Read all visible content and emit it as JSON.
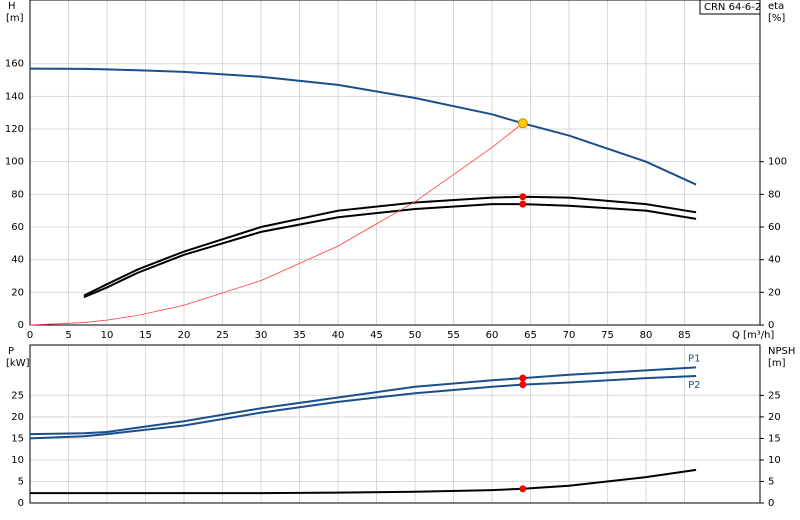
{
  "chart_data": [
    {
      "type": "line",
      "title": "CRN 64-6-2",
      "ylabel": "H",
      "yunit": "[m]",
      "y2label": "eta",
      "y2unit": "[%]",
      "xlabel": "Q [m³/h]",
      "x": [
        0,
        7,
        10,
        14,
        20,
        30,
        40,
        50,
        60,
        64,
        70,
        80,
        86.5
      ],
      "xlim": [
        0,
        94.8
      ],
      "xticks": [
        0,
        5,
        10,
        15,
        20,
        25,
        30,
        35,
        40,
        45,
        50,
        55,
        60,
        65,
        70,
        75,
        80,
        85
      ],
      "ylim": [
        0,
        199
      ],
      "yticks": [
        0,
        20,
        40,
        60,
        80,
        100,
        120,
        140,
        160
      ],
      "y2lim": [
        0,
        199
      ],
      "y2ticks": [
        0,
        20,
        40,
        60,
        80,
        100
      ],
      "grid": true,
      "xtick_labels": true,
      "series": [
        {
          "color": "#1a4f8c",
          "values": [
            157,
            156.8,
            156.5,
            156,
            155,
            152,
            147,
            139,
            129,
            123.5,
            116,
            100,
            86
          ]
        },
        {
          "color": "#000000",
          "axis": "y2",
          "values": [
            null,
            18,
            25,
            34,
            45,
            60,
            70,
            75,
            78,
            78.5,
            78,
            74,
            69
          ]
        },
        {
          "color": "#000000",
          "axis": "y2",
          "values": [
            null,
            17,
            23,
            32,
            43,
            57,
            66,
            71,
            74,
            74,
            73,
            70,
            65
          ]
        },
        {
          "color": "#ff3a3a",
          "values": [
            0,
            1.5,
            3,
            5.9,
            12.1,
            27.2,
            48.3,
            75.5,
            108.7,
            123.5,
            null,
            null,
            null
          ]
        }
      ],
      "markers": [
        {
          "x": 64,
          "y": 123.5,
          "color": "#f5d000"
        },
        {
          "x": 64,
          "y": 78.5,
          "color": "#ff0000",
          "axis": "y2"
        },
        {
          "x": 64,
          "y": 74,
          "color": "#ff0000",
          "axis": "y2"
        }
      ]
    },
    {
      "type": "line",
      "ylabel": "P",
      "yunit": "[kW]",
      "y2label": "NPSH",
      "y2unit": "[m]",
      "x": [
        0,
        7,
        10,
        14,
        20,
        30,
        40,
        50,
        60,
        64,
        70,
        80,
        86.5
      ],
      "xlim": [
        0,
        94.8
      ],
      "xticks": [
        0,
        5,
        10,
        15,
        20,
        25,
        30,
        35,
        40,
        45,
        50,
        55,
        60,
        65,
        70,
        75,
        80,
        85
      ],
      "ylim": [
        0,
        36.7
      ],
      "yticks": [
        0,
        5,
        10,
        15,
        20,
        25
      ],
      "y2lim": [
        0,
        36.7
      ],
      "y2ticks": [
        0,
        5,
        10,
        15,
        20,
        25
      ],
      "grid": true,
      "xtick_labels": false,
      "series": [
        {
          "name": "P1",
          "color": "#1a4f8c",
          "values": [
            16,
            16.2,
            16.5,
            17.5,
            19,
            22,
            24.5,
            27,
            28.5,
            29,
            29.8,
            30.8,
            31.5
          ]
        },
        {
          "name": "P2",
          "color": "#1a4f8c",
          "values": [
            15,
            15.5,
            16,
            16.8,
            18,
            21,
            23.5,
            25.5,
            27,
            27.5,
            28,
            29,
            29.5
          ]
        },
        {
          "color": "#000000",
          "axis": "y2",
          "values": [
            2.3,
            2.3,
            2.3,
            2.3,
            2.3,
            2.3,
            2.4,
            2.6,
            3,
            3.3,
            4,
            6,
            7.7
          ]
        }
      ],
      "markers": [
        {
          "x": 64,
          "y": 29,
          "color": "#ff0000"
        },
        {
          "x": 64,
          "y": 27.5,
          "color": "#ff0000"
        },
        {
          "x": 64,
          "y": 3.3,
          "color": "#ff0000",
          "axis": "y2"
        }
      ]
    }
  ]
}
